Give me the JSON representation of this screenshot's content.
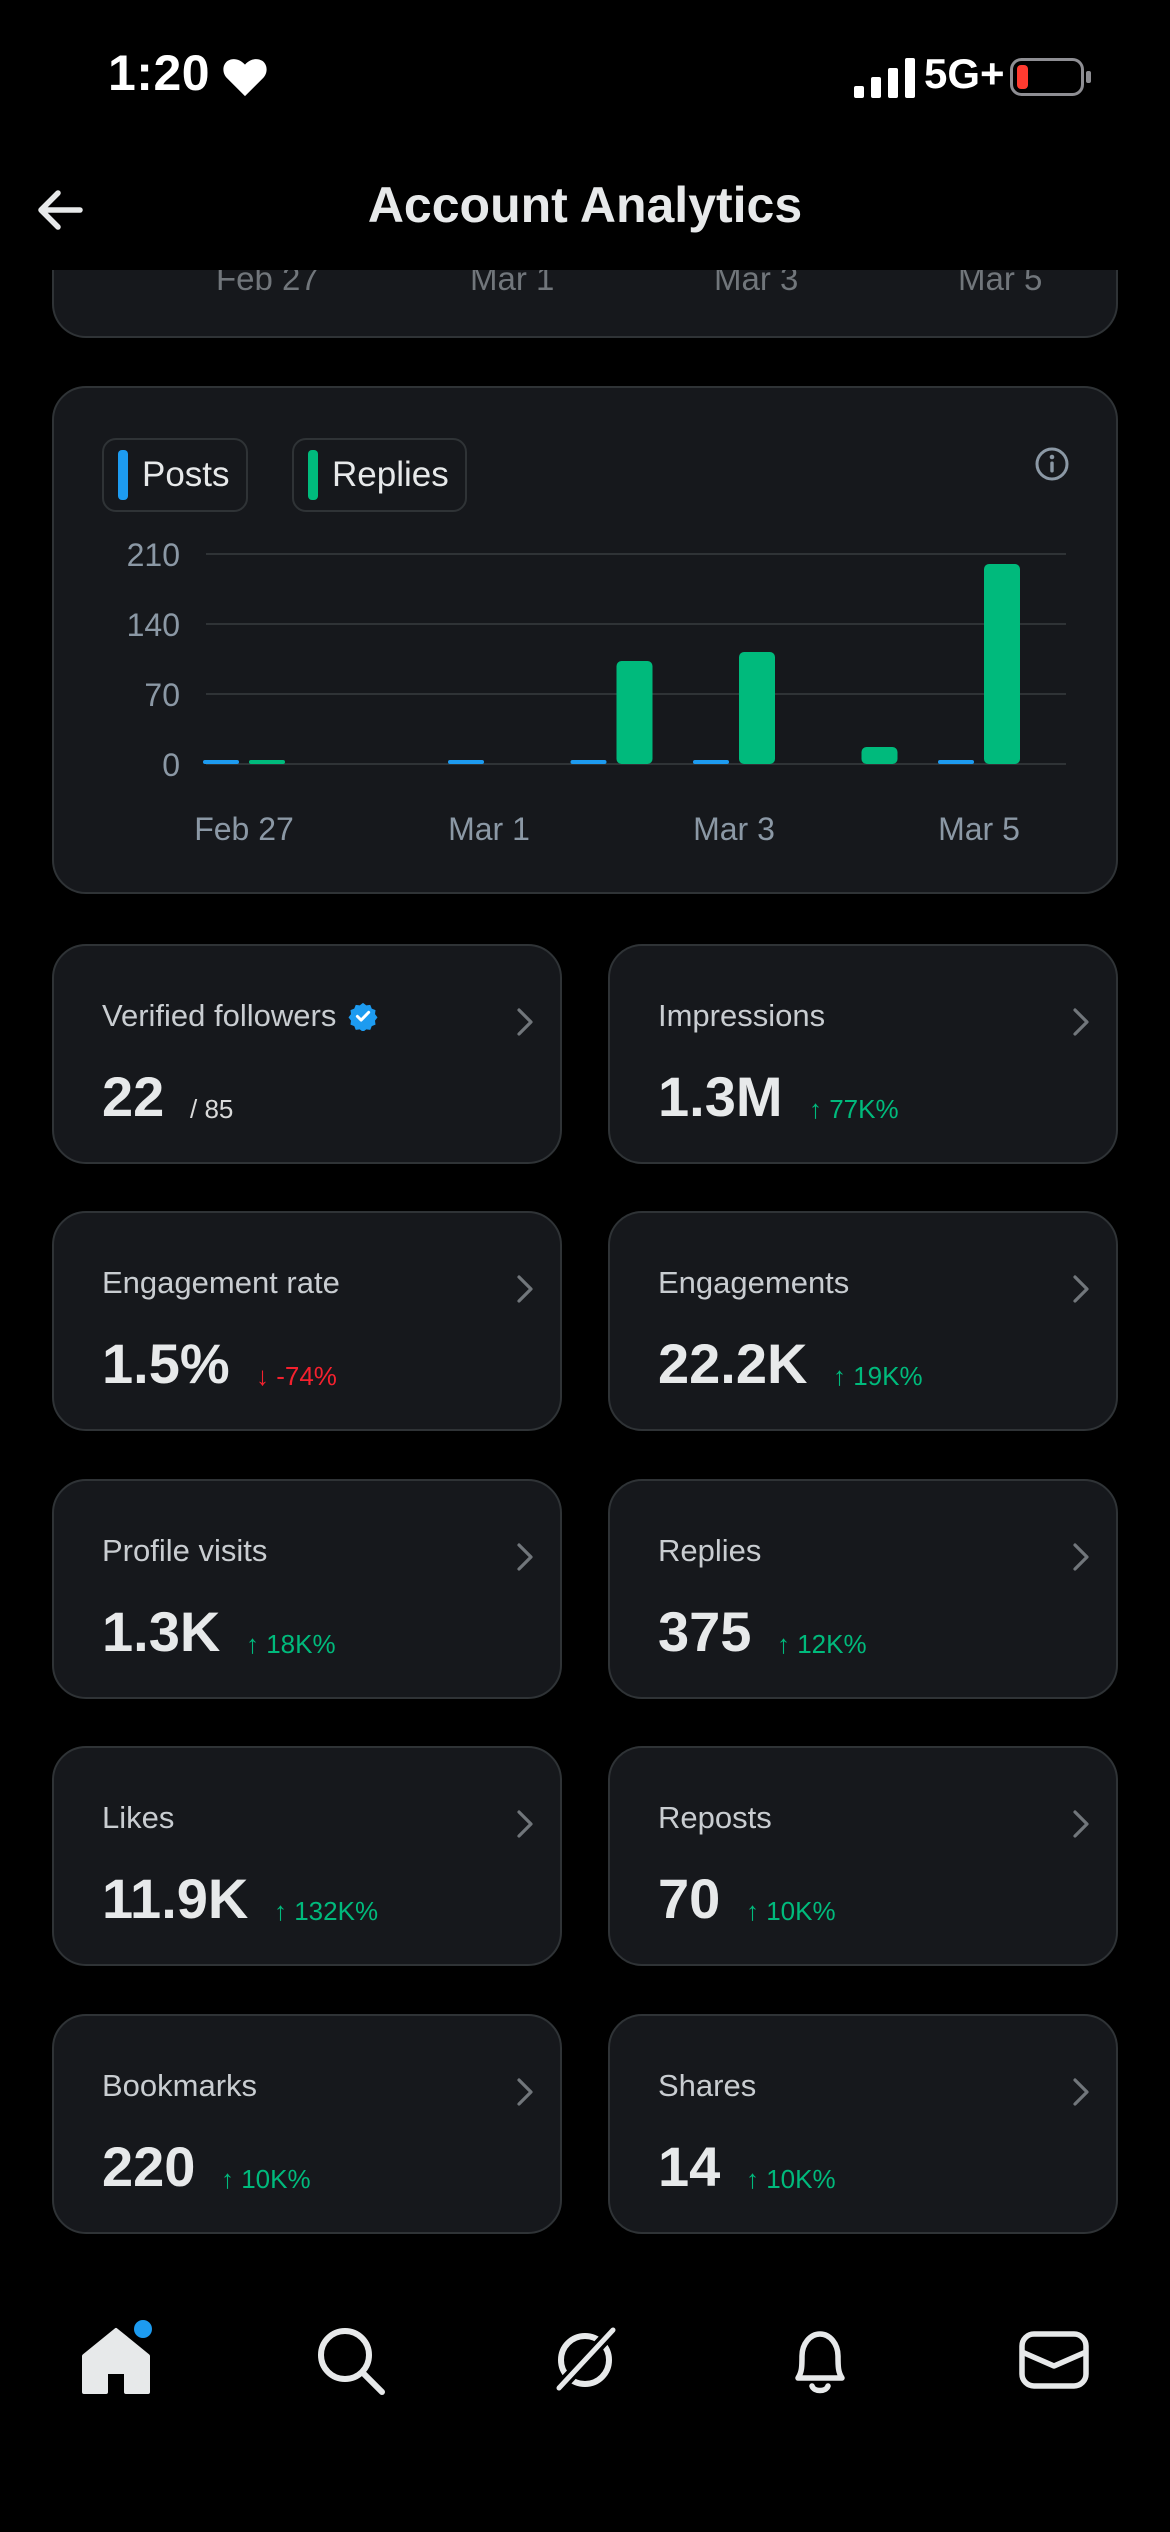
{
  "status": {
    "time": "1:20",
    "network": "5G+"
  },
  "header": {
    "title": "Account Analytics"
  },
  "top_chart": {
    "ticks": [
      "Feb 27",
      "Mar 1",
      "Mar 3",
      "Mar 5"
    ]
  },
  "colors": {
    "posts": "#1d9bf0",
    "replies": "#00ba7c",
    "up": "#00ba7c",
    "down": "#f4212e",
    "card_bg": "#16181c",
    "border": "#2f3336"
  },
  "chart_data": {
    "type": "bar",
    "categories": [
      "Feb 27",
      "Feb 28",
      "Mar 1",
      "Mar 2",
      "Mar 3",
      "Mar 4",
      "Mar 5"
    ],
    "series": [
      {
        "name": "Posts",
        "color": "#1d9bf0",
        "values": [
          1,
          0,
          1,
          3,
          1,
          0,
          3
        ]
      },
      {
        "name": "Replies",
        "color": "#00ba7c",
        "values": [
          1,
          0,
          0,
          103,
          112,
          17,
          200
        ]
      }
    ],
    "x_tick_labels": [
      "Feb 27",
      "Mar 1",
      "Mar 3",
      "Mar 5"
    ],
    "y_ticks": [
      "210",
      "140",
      "70",
      "0"
    ],
    "y_tick_values": [
      210,
      140,
      70,
      0
    ],
    "ylim": [
      0,
      210
    ],
    "grid": true,
    "legend_placement": "top-left"
  },
  "metrics": [
    {
      "label": "Verified followers",
      "value": "22",
      "sub": "/ 85",
      "verified": true,
      "trend": "neutral"
    },
    {
      "label": "Impressions",
      "value": "1.3M",
      "sub": "↑ 77K%",
      "trend": "up"
    },
    {
      "label": "Engagement rate",
      "value": "1.5%",
      "sub": "↓ -74%",
      "trend": "down"
    },
    {
      "label": "Engagements",
      "value": "22.2K",
      "sub": "↑ 19K%",
      "trend": "up"
    },
    {
      "label": "Profile visits",
      "value": "1.3K",
      "sub": "↑ 18K%",
      "trend": "up"
    },
    {
      "label": "Replies",
      "value": "375",
      "sub": "↑ 12K%",
      "trend": "up"
    },
    {
      "label": "Likes",
      "value": "11.9K",
      "sub": "↑ 132K%",
      "trend": "up"
    },
    {
      "label": "Reposts",
      "value": "70",
      "sub": "↑ 10K%",
      "trend": "up"
    },
    {
      "label": "Bookmarks",
      "value": "220",
      "sub": "↑ 10K%",
      "trend": "up"
    },
    {
      "label": "Shares",
      "value": "14",
      "sub": "↑ 10K%",
      "trend": "up"
    }
  ],
  "tabs": [
    {
      "icon": "home-icon",
      "active": true,
      "badge": true
    },
    {
      "icon": "search-icon"
    },
    {
      "icon": "grok-icon"
    },
    {
      "icon": "bell-icon"
    },
    {
      "icon": "mail-icon"
    }
  ]
}
